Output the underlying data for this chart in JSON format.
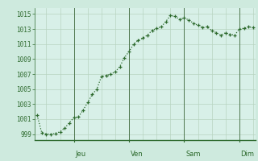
{
  "x_values": [
    0,
    1,
    2,
    3,
    4,
    5,
    6,
    7,
    8,
    9,
    10,
    11,
    12,
    13,
    14,
    15,
    16,
    17,
    18,
    19,
    20,
    21,
    22,
    23,
    24,
    25,
    26,
    27,
    28,
    29,
    30,
    31,
    32,
    33,
    34,
    35,
    36,
    37,
    38,
    39,
    40,
    41,
    42,
    43,
    44,
    45,
    46,
    47
  ],
  "y_values": [
    1001.5,
    999.2,
    999.0,
    999.0,
    999.1,
    999.3,
    999.8,
    1000.5,
    1001.2,
    1001.3,
    1002.2,
    1003.2,
    1004.3,
    1005.0,
    1006.7,
    1006.8,
    1007.0,
    1007.3,
    1008.0,
    1009.2,
    1010.0,
    1011.0,
    1011.5,
    1011.8,
    1012.2,
    1012.8,
    1013.1,
    1013.3,
    1014.0,
    1014.8,
    1014.7,
    1014.3,
    1014.5,
    1014.2,
    1013.8,
    1013.5,
    1013.2,
    1013.3,
    1012.8,
    1012.5,
    1012.2,
    1012.5,
    1012.3,
    1012.2,
    1013.0,
    1013.1,
    1013.3,
    1013.2
  ],
  "line_color": "#2d6a2d",
  "marker_color": "#2d6a2d",
  "bg_color": "#ceeade",
  "plot_bg_color": "#d8f0e8",
  "grid_color": "#b8d4c0",
  "vline_color": "#507850",
  "bottom_line_color": "#2d6a2d",
  "label_color": "#2d6a2d",
  "yticks": [
    999,
    1001,
    1003,
    1005,
    1007,
    1009,
    1011,
    1013,
    1015
  ],
  "ylim": [
    998.2,
    1015.8
  ],
  "xlim": [
    -0.5,
    47.5
  ],
  "day_labels": [
    "Jeu",
    "Ven",
    "Sam",
    "Dim"
  ],
  "day_positions": [
    8,
    20,
    32,
    44
  ],
  "vline_positions": [
    8,
    20,
    32,
    44
  ],
  "grid_x_positions": [
    2,
    5,
    8,
    11,
    14,
    17,
    20,
    23,
    26,
    29,
    32,
    35,
    38,
    41,
    44,
    47
  ],
  "figsize": [
    3.2,
    2.0
  ],
  "dpi": 100
}
